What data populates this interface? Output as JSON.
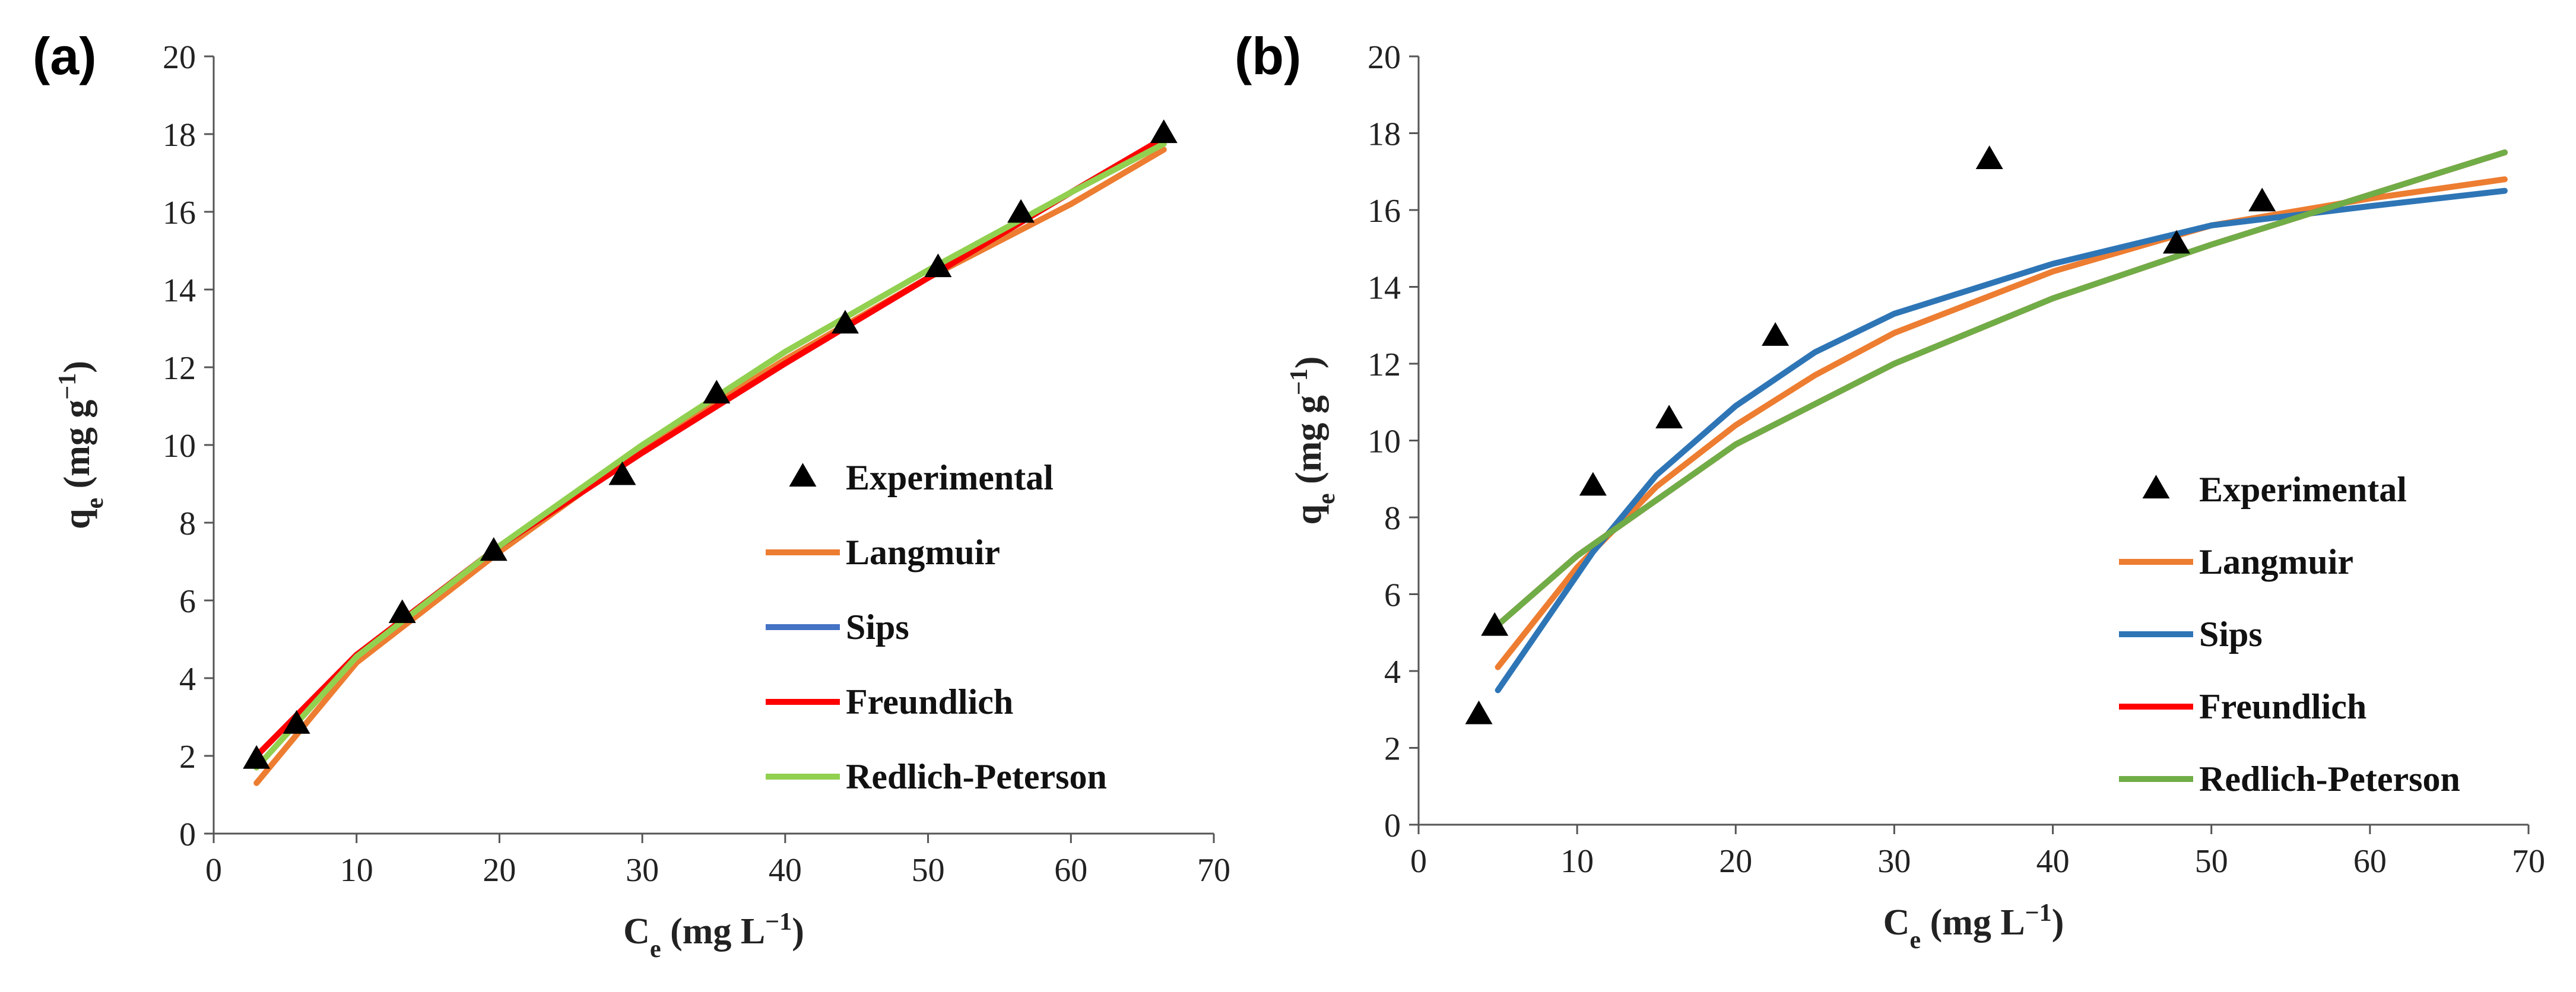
{
  "chart_data": [
    {
      "panel_label": "(a)",
      "type": "scatter",
      "xlabel": {
        "main": "C",
        "sub": "e",
        "rest": " (mg L",
        "sup": "−1",
        "end": ")"
      },
      "ylabel": {
        "main": "q",
        "sub": "e",
        "rest": " (mg g",
        "sup": "−1",
        "end": ")"
      },
      "xlim": [
        0,
        70
      ],
      "ylim": [
        0,
        20
      ],
      "xticks": [
        0,
        10,
        20,
        30,
        40,
        50,
        60,
        70
      ],
      "yticks": [
        0,
        2,
        4,
        6,
        8,
        10,
        12,
        14,
        16,
        18,
        20
      ],
      "experimental": {
        "name": "Experimental",
        "points": [
          [
            3.0,
            1.9
          ],
          [
            5.8,
            2.8
          ],
          [
            13.2,
            5.65
          ],
          [
            19.6,
            7.25
          ],
          [
            28.6,
            9.2
          ],
          [
            35.2,
            11.3
          ],
          [
            44.2,
            13.1
          ],
          [
            50.7,
            14.55
          ],
          [
            56.5,
            15.95
          ],
          [
            66.5,
            18.0
          ]
        ]
      },
      "series": [
        {
          "name": "Langmuir",
          "color": "#ED7D31",
          "x": [
            3,
            10,
            20,
            30,
            40,
            50,
            60,
            66.5
          ],
          "y": [
            1.3,
            4.4,
            7.25,
            9.9,
            12.2,
            14.3,
            16.2,
            17.6
          ]
        },
        {
          "name": "Sips",
          "color": "#4472C4",
          "x": [
            3,
            10,
            20,
            30,
            40,
            50,
            60,
            66.5
          ],
          "y": [
            2.0,
            4.6,
            7.4,
            9.8,
            12.1,
            14.3,
            16.5,
            17.9
          ]
        },
        {
          "name": "Freundlich",
          "color": "#FF0000",
          "x": [
            3,
            10,
            20,
            30,
            40,
            50,
            60,
            66.5
          ],
          "y": [
            2.0,
            4.6,
            7.4,
            9.8,
            12.1,
            14.3,
            16.5,
            17.9
          ]
        },
        {
          "name": "Redlich-Peterson",
          "color": "#92D050",
          "x": [
            3,
            10,
            20,
            30,
            40,
            50,
            60,
            66.5
          ],
          "y": [
            1.7,
            4.55,
            7.4,
            10.0,
            12.4,
            14.5,
            16.5,
            17.75
          ]
        }
      ],
      "legend": [
        "Experimental",
        "Langmuir",
        "Sips",
        "Freundlich",
        "Redlich-Peterson"
      ]
    },
    {
      "panel_label": "(b)",
      "type": "scatter",
      "xlabel": {
        "main": "C",
        "sub": "e",
        "rest": " (mg L",
        "sup": "−1",
        "end": ")"
      },
      "ylabel": {
        "main": "q",
        "sub": "e",
        "rest": " (mg g",
        "sup": "−1",
        "end": ")"
      },
      "xlim": [
        0,
        70
      ],
      "ylim": [
        0,
        20
      ],
      "xticks": [
        0,
        10,
        20,
        30,
        40,
        50,
        60,
        70
      ],
      "yticks": [
        0,
        2,
        4,
        6,
        8,
        10,
        12,
        14,
        16,
        18,
        20
      ],
      "experimental": {
        "name": "Experimental",
        "points": [
          [
            3.8,
            2.85
          ],
          [
            4.8,
            5.15
          ],
          [
            11.0,
            8.8
          ],
          [
            15.8,
            10.55
          ],
          [
            22.5,
            12.7
          ],
          [
            36.0,
            17.3
          ],
          [
            47.8,
            15.1
          ],
          [
            53.2,
            16.2
          ]
        ]
      },
      "series": [
        {
          "name": "Langmuir",
          "color": "#ED7D31",
          "x": [
            5,
            10,
            15,
            20,
            25,
            30,
            40,
            50,
            60,
            68.5
          ],
          "y": [
            4.1,
            6.7,
            8.8,
            10.4,
            11.7,
            12.8,
            14.4,
            15.6,
            16.3,
            16.8
          ]
        },
        {
          "name": "Sips",
          "color": "#2E75B6",
          "x": [
            5,
            8,
            11,
            15,
            20,
            25,
            30,
            40,
            50,
            60,
            68.5
          ],
          "y": [
            3.5,
            5.3,
            7.1,
            9.1,
            10.9,
            12.3,
            13.3,
            14.6,
            15.6,
            16.1,
            16.5
          ]
        },
        {
          "name": "Freundlich",
          "color": "#FF0000",
          "x": [
            5,
            10,
            20,
            30,
            40,
            50,
            60,
            68.5
          ],
          "y": [
            5.2,
            7.0,
            9.9,
            12.0,
            13.7,
            15.1,
            16.4,
            17.5
          ]
        },
        {
          "name": "Redlich-Peterson",
          "color": "#70AD47",
          "x": [
            5,
            10,
            20,
            30,
            40,
            50,
            60,
            68.5
          ],
          "y": [
            5.2,
            7.0,
            9.9,
            12.0,
            13.7,
            15.1,
            16.4,
            17.5
          ]
        }
      ],
      "legend": [
        "Experimental",
        "Langmuir",
        "Sips",
        "Freundlich",
        "Redlich-Peterson"
      ]
    }
  ]
}
